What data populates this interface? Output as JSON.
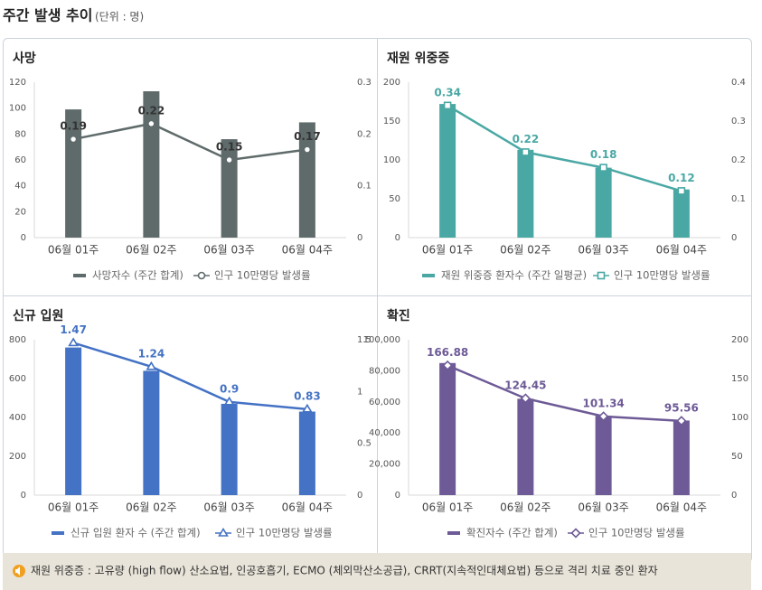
{
  "title": "주간 발생 추이",
  "unit": "(단위 : 명)",
  "notes": [
    "재원 위중증 : 고유량 (high flow) 산소요법, 인공호흡기, ECMO (체외막산소공급), CRRT(지속적인대체요법) 등으로 격리 치료 중인 환자"
  ],
  "chart_data": [
    {
      "type": "bar-line",
      "title": "사망",
      "categories": [
        "06월 01주",
        "06월 02주",
        "06월 03주",
        "06월 04주"
      ],
      "series": [
        {
          "name": "사망자수 (주간 합계)",
          "type": "bar",
          "color": "#5f6a6a",
          "values": [
            99,
            113,
            76,
            89
          ]
        },
        {
          "name": "인구 10만명당 발생률",
          "type": "line",
          "axis": "y2",
          "marker": "circle",
          "color": "#5f6a6a",
          "values": [
            0.19,
            0.22,
            0.15,
            0.17
          ]
        }
      ],
      "ylim": [
        0,
        120
      ],
      "yticks": [
        0,
        20,
        40,
        60,
        80,
        100,
        120
      ],
      "y2lim": [
        0,
        0.3
      ],
      "y2ticks": [
        0,
        0.1,
        0.2,
        0.3
      ],
      "grid": false
    },
    {
      "type": "bar-line",
      "title": "재원 위중증",
      "categories": [
        "06월 01주",
        "06월 02주",
        "06월 03주",
        "06월 04주"
      ],
      "series": [
        {
          "name": "재원 위중증 환자수 (주간 일평균)",
          "type": "bar",
          "color": "#4aa8a4",
          "values": [
            172,
            113,
            90,
            62
          ]
        },
        {
          "name": "인구 10만명당 발생률",
          "type": "line",
          "axis": "y2",
          "marker": "square",
          "color": "#4aa8a4",
          "values": [
            0.34,
            0.22,
            0.18,
            0.12
          ]
        }
      ],
      "ylim": [
        0,
        200
      ],
      "yticks": [
        0,
        50,
        100,
        150,
        200
      ],
      "y2lim": [
        0,
        0.4
      ],
      "y2ticks": [
        0,
        0.1,
        0.2,
        0.3,
        0.4
      ],
      "grid": false
    },
    {
      "type": "bar-line",
      "title": "신규 입원",
      "categories": [
        "06월 01주",
        "06월 02주",
        "06월 03주",
        "06월 04주"
      ],
      "series": [
        {
          "name": "신규 입원 환자 수 (주간 합계)",
          "type": "bar",
          "color": "#4472c4",
          "values": [
            760,
            640,
            470,
            430
          ]
        },
        {
          "name": "인구 10만명당 발생률",
          "type": "line",
          "axis": "y2",
          "marker": "triangle",
          "color": "#4472c4",
          "values": [
            1.47,
            1.24,
            0.9,
            0.83
          ]
        }
      ],
      "ylim": [
        0,
        800
      ],
      "yticks": [
        0,
        200,
        400,
        600,
        800
      ],
      "y2lim": [
        0,
        1.5
      ],
      "y2ticks": [
        0,
        0.5,
        1,
        1.5
      ],
      "grid": false
    },
    {
      "type": "bar-line",
      "title": "확진",
      "categories": [
        "06월 01주",
        "06월 02주",
        "06월 03주",
        "06월 04주"
      ],
      "series": [
        {
          "name": "확진자수 (주간 합계)",
          "type": "bar",
          "color": "#6d5a96",
          "values": [
            85000,
            62000,
            51000,
            48000
          ]
        },
        {
          "name": "인구 10만명당 발생률",
          "type": "line",
          "axis": "y2",
          "marker": "diamond",
          "color": "#6d5a96",
          "values": [
            166.88,
            124.45,
            101.34,
            95.56
          ]
        }
      ],
      "ylim": [
        0,
        100000
      ],
      "yticks": [
        0,
        {
          "value": 20000,
          "label": "20,000"
        },
        {
          "value": 40000,
          "label": "40,000"
        },
        {
          "value": 60000,
          "label": "60,000"
        },
        {
          "value": 80000,
          "label": "80,000"
        },
        {
          "value": 100000,
          "label": "100,000"
        }
      ],
      "y2lim": [
        0,
        200
      ],
      "y2ticks": [
        0,
        50,
        100,
        150,
        200
      ],
      "grid": false
    }
  ]
}
